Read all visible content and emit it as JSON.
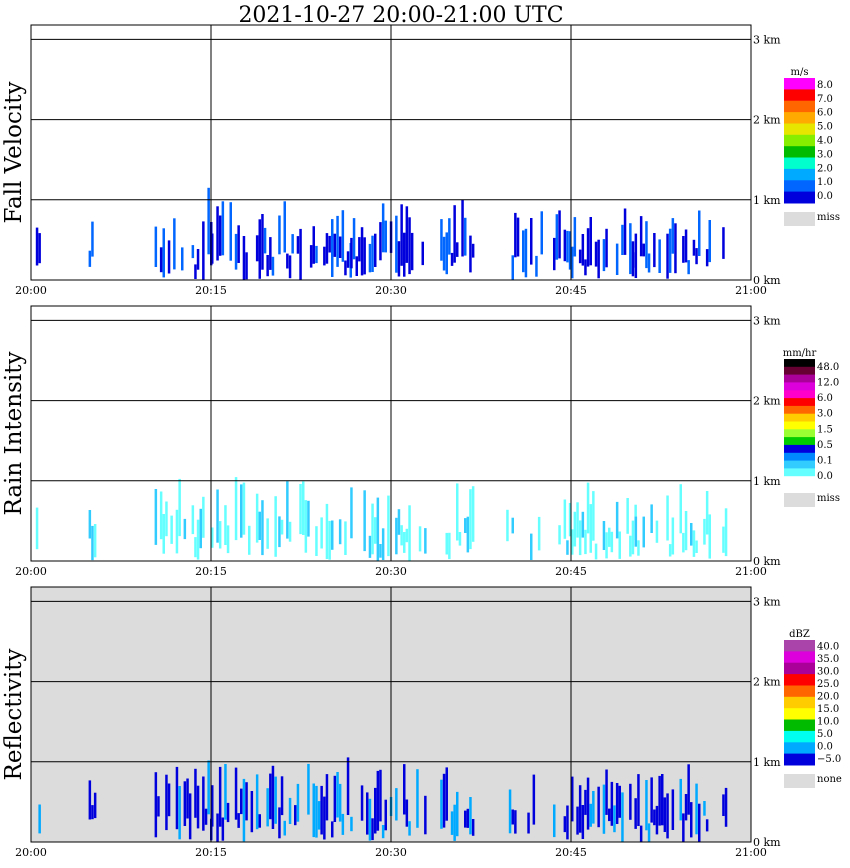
{
  "title": "2021-10-27   20:00-21:00 UTC",
  "chart_data": [
    {
      "type": "heatmap",
      "panel_label": "Fall Velocity",
      "x_ticks": [
        "20:00",
        "20:15",
        "20:30",
        "20:45",
        "21:00"
      ],
      "y_ticks": [
        "0 km",
        "1 km",
        "2 km",
        "3 km"
      ],
      "xlim": [
        "20:00",
        "21:00"
      ],
      "ylim_km": [
        0,
        3.0
      ],
      "colorbar": {
        "unit": "m/s",
        "labels": [
          "8.0",
          "7.0",
          "6.0",
          "5.0",
          "4.0",
          "3.0",
          "2.0",
          "1.0",
          "0.0"
        ],
        "colors": [
          "#ff00ff",
          "#ff0000",
          "#ff6600",
          "#ffaa00",
          "#e6e600",
          "#88ee00",
          "#00bb00",
          "#00ffcc",
          "#00aaff",
          "#0066ff",
          "#0000dd"
        ],
        "missing_label": "miss",
        "missing_color": "#dcdcdc"
      },
      "background": "#ffffff",
      "echo_time_bins_min": [
        [
          0.4,
          0.8
        ],
        [
          4.8,
          5.3
        ],
        [
          10.3,
          15.0
        ],
        [
          15.0,
          20.4
        ],
        [
          20.6,
          26.6
        ],
        [
          26.6,
          32.8
        ],
        [
          34.1,
          36.9
        ],
        [
          39.6,
          42.6
        ],
        [
          43.5,
          45.0
        ],
        [
          45.0,
          50.3
        ],
        [
          50.3,
          56.6
        ],
        [
          57.6,
          58.0
        ]
      ],
      "echo_top_km": [
        0.55,
        0.55,
        0.78,
        0.74,
        0.68,
        0.74,
        0.7,
        0.62,
        0.58,
        0.6,
        0.6,
        0.55
      ],
      "echo_color": "#0000dd",
      "echo_secondary_color": "#0066ff"
    },
    {
      "type": "heatmap",
      "panel_label": "Rain Intensity",
      "x_ticks": [
        "20:00",
        "20:15",
        "20:30",
        "20:45",
        "21:00"
      ],
      "y_ticks": [
        "0 km",
        "1 km",
        "2 km",
        "3 km"
      ],
      "xlim": [
        "20:00",
        "21:00"
      ],
      "ylim_km": [
        0,
        3.0
      ],
      "colorbar": {
        "unit": "mm/hr",
        "labels": [
          "48.0",
          "12.0",
          "6.0",
          "3.0",
          "1.5",
          "0.5",
          "0.1",
          "0.0"
        ],
        "colors": [
          "#000000",
          "#660033",
          "#aa0099",
          "#dd00dd",
          "#ff00cc",
          "#ff0000",
          "#ff6600",
          "#ffcc00",
          "#ffff00",
          "#99ff33",
          "#00cc00",
          "#0000dd",
          "#0088ff",
          "#33ccff",
          "#66ffff",
          "#ffffff"
        ],
        "missing_label": "miss",
        "missing_color": "#dcdcdc"
      },
      "background": "#ffffff",
      "echo_time_bins_min": [
        [
          0.4,
          0.8
        ],
        [
          4.8,
          5.3
        ],
        [
          10.3,
          15.0
        ],
        [
          15.0,
          20.4
        ],
        [
          20.6,
          26.6
        ],
        [
          26.6,
          32.8
        ],
        [
          34.1,
          36.9
        ],
        [
          39.6,
          42.6
        ],
        [
          43.5,
          45.0
        ],
        [
          45.0,
          50.3
        ],
        [
          50.3,
          56.6
        ],
        [
          57.6,
          58.0
        ]
      ],
      "echo_top_km": [
        0.55,
        0.55,
        0.78,
        0.74,
        0.68,
        0.74,
        0.7,
        0.62,
        0.58,
        0.6,
        0.6,
        0.55
      ],
      "echo_color": "#66ffff",
      "echo_secondary_color": "#33ccff"
    },
    {
      "type": "heatmap",
      "panel_label": "Reflectivity",
      "x_ticks": [
        "20:00",
        "20:15",
        "20:30",
        "20:45",
        "21:00"
      ],
      "y_ticks": [
        "0 km",
        "1 km",
        "2 km",
        "3 km"
      ],
      "xlim": [
        "20:00",
        "21:00"
      ],
      "ylim_km": [
        0,
        3.0
      ],
      "colorbar": {
        "unit": "dBZ",
        "labels": [
          "40.0",
          "35.0",
          "30.0",
          "25.0",
          "20.0",
          "15.0",
          "10.0",
          "5.0",
          "0.0",
          "−5.0"
        ],
        "colors": [
          "#aa44aa",
          "#dd00dd",
          "#aa0099",
          "#ff0000",
          "#ff6600",
          "#ffcc00",
          "#ffff00",
          "#00bb00",
          "#00ffee",
          "#00aaff",
          "#0000dd"
        ],
        "missing_label": "none",
        "missing_color": "#dcdcdc"
      },
      "background": "#dcdcdc",
      "echo_time_bins_min": [
        [
          0.4,
          0.8
        ],
        [
          4.8,
          5.3
        ],
        [
          10.3,
          15.0
        ],
        [
          15.0,
          20.4
        ],
        [
          20.6,
          26.6
        ],
        [
          26.6,
          32.8
        ],
        [
          34.1,
          36.9
        ],
        [
          39.6,
          42.6
        ],
        [
          43.5,
          45.0
        ],
        [
          45.0,
          50.3
        ],
        [
          50.3,
          56.6
        ],
        [
          57.6,
          58.0
        ]
      ],
      "echo_top_km": [
        0.55,
        0.55,
        0.78,
        0.74,
        0.68,
        0.74,
        0.7,
        0.62,
        0.58,
        0.6,
        0.6,
        0.55
      ],
      "echo_color": "#0000dd",
      "echo_secondary_color": "#00aaff"
    }
  ]
}
